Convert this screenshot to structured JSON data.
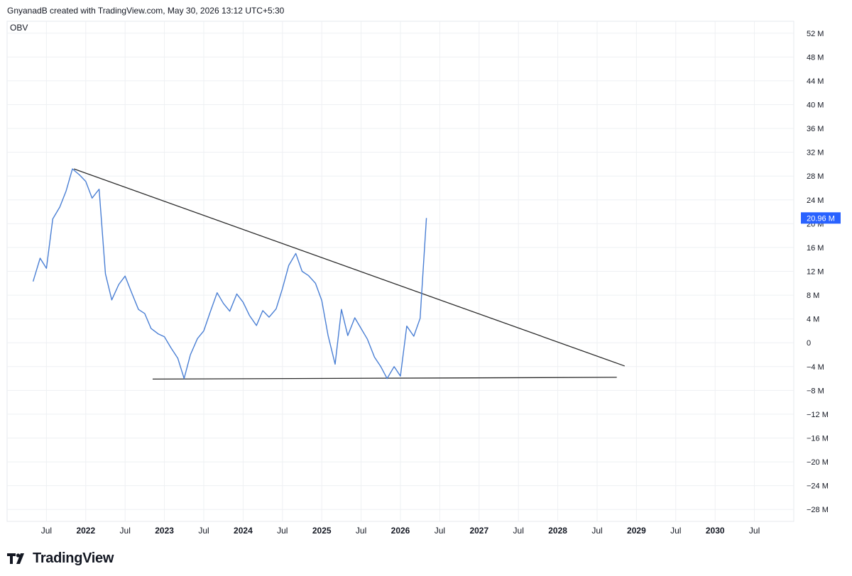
{
  "header": {
    "attribution": "GnyanadB created with TradingView.com, May 30, 2026 13:12 UTC+5:30"
  },
  "indicator": {
    "label": "OBV"
  },
  "brand": {
    "name": "TradingView",
    "icon": "tradingview-logo-icon"
  },
  "colors": {
    "series": "#4a7fd4",
    "trendline": "#2b2b2b",
    "badge": "#2962ff",
    "grid": "#eef0f3"
  },
  "chart_data": {
    "type": "line",
    "ylim": [
      -30,
      54
    ],
    "xlim": [
      2021.0,
      2031.0
    ],
    "y_ticks": [
      {
        "value": 52,
        "label": "52 M"
      },
      {
        "value": 48,
        "label": "48 M"
      },
      {
        "value": 44,
        "label": "44 M"
      },
      {
        "value": 40,
        "label": "40 M"
      },
      {
        "value": 36,
        "label": "36 M"
      },
      {
        "value": 32,
        "label": "32 M"
      },
      {
        "value": 28,
        "label": "28 M"
      },
      {
        "value": 24,
        "label": "24 M"
      },
      {
        "value": 20,
        "label": "20 M"
      },
      {
        "value": 16,
        "label": "16 M"
      },
      {
        "value": 12,
        "label": "12 M"
      },
      {
        "value": 8,
        "label": "8 M"
      },
      {
        "value": 4,
        "label": "4 M"
      },
      {
        "value": 0,
        "label": "0"
      },
      {
        "value": -4,
        "label": "−4 M"
      },
      {
        "value": -8,
        "label": "−8 M"
      },
      {
        "value": -12,
        "label": "−12 M"
      },
      {
        "value": -16,
        "label": "−16 M"
      },
      {
        "value": -20,
        "label": "−20 M"
      },
      {
        "value": -24,
        "label": "−24 M"
      },
      {
        "value": -28,
        "label": "−28 M"
      }
    ],
    "x_ticks": [
      {
        "value": 2021.5,
        "label": "Jul",
        "bold": false
      },
      {
        "value": 2022.0,
        "label": "2022",
        "bold": true
      },
      {
        "value": 2022.5,
        "label": "Jul",
        "bold": false
      },
      {
        "value": 2023.0,
        "label": "2023",
        "bold": true
      },
      {
        "value": 2023.5,
        "label": "Jul",
        "bold": false
      },
      {
        "value": 2024.0,
        "label": "2024",
        "bold": true
      },
      {
        "value": 2024.5,
        "label": "Jul",
        "bold": false
      },
      {
        "value": 2025.0,
        "label": "2025",
        "bold": true
      },
      {
        "value": 2025.5,
        "label": "Jul",
        "bold": false
      },
      {
        "value": 2026.0,
        "label": "2026",
        "bold": true
      },
      {
        "value": 2026.5,
        "label": "Jul",
        "bold": false
      },
      {
        "value": 2027.0,
        "label": "2027",
        "bold": true
      },
      {
        "value": 2027.5,
        "label": "Jul",
        "bold": false
      },
      {
        "value": 2028.0,
        "label": "2028",
        "bold": true
      },
      {
        "value": 2028.5,
        "label": "Jul",
        "bold": false
      },
      {
        "value": 2029.0,
        "label": "2029",
        "bold": true
      },
      {
        "value": 2029.5,
        "label": "Jul",
        "bold": false
      },
      {
        "value": 2030.0,
        "label": "2030",
        "bold": true
      },
      {
        "value": 2030.5,
        "label": "Jul",
        "bold": false
      }
    ],
    "series": [
      {
        "x": [
          2021.33,
          2021.42,
          2021.5,
          2021.58,
          2021.67,
          2021.75,
          2021.83,
          2021.92,
          2022.0,
          2022.08,
          2022.17,
          2022.25,
          2022.33,
          2022.42,
          2022.5,
          2022.58,
          2022.67,
          2022.75,
          2022.83,
          2022.92,
          2023.0,
          2023.08,
          2023.17,
          2023.25,
          2023.33,
          2023.42,
          2023.5,
          2023.58,
          2023.67,
          2023.75,
          2023.83,
          2023.92,
          2024.0,
          2024.08,
          2024.17,
          2024.25,
          2024.33,
          2024.42,
          2024.5,
          2024.58,
          2024.67,
          2024.75,
          2024.83,
          2024.92,
          2025.0,
          2025.08,
          2025.17,
          2025.25,
          2025.33,
          2025.42,
          2025.5,
          2025.58,
          2025.67,
          2025.75,
          2025.83,
          2025.92,
          2026.0,
          2026.08,
          2026.17,
          2026.25,
          2026.33
        ],
        "y": [
          10.3,
          14.2,
          12.5,
          20.8,
          22.8,
          25.5,
          29.2,
          28.2,
          27.1,
          24.3,
          25.8,
          11.6,
          7.2,
          9.8,
          11.2,
          8.5,
          5.6,
          4.9,
          2.4,
          1.5,
          1.0,
          -0.8,
          -2.6,
          -6.0,
          -2.0,
          0.7,
          2.0,
          5.1,
          8.4,
          6.6,
          5.3,
          8.2,
          6.8,
          4.6,
          2.9,
          5.4,
          4.3,
          5.7,
          9.1,
          13.0,
          15.0,
          12.0,
          11.3,
          10.0,
          7.1,
          1.2,
          -3.6,
          5.6,
          1.2,
          4.2,
          2.4,
          0.6,
          -2.4,
          -4.0,
          -6.0,
          -4.0,
          -5.6,
          2.8,
          1.1,
          4.1,
          20.96
        ]
      }
    ],
    "trendlines": [
      {
        "x": [
          2021.85,
          2028.85
        ],
        "y": [
          29.2,
          -3.9
        ]
      },
      {
        "x": [
          2022.85,
          2028.75
        ],
        "y": [
          -6.1,
          -5.8
        ]
      }
    ],
    "last_value_label": "20.96 M",
    "last_value": 20.96
  }
}
